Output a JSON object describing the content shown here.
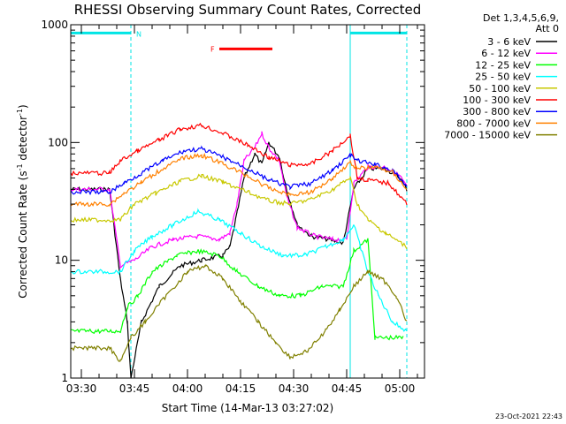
{
  "chart_data": {
    "type": "line",
    "title": "RHESSI Observing Summary Count Rates, Corrected",
    "xlabel": "Start Time (14-Mar-13 03:27:02)",
    "ylabel_main": "Corrected Count Rate (s",
    "ylabel_sup1": "-1",
    "ylabel_mid": " detector",
    "ylabel_sup2": "-1",
    "ylabel_end": ")",
    "yscale": "log",
    "ylim": [
      1,
      1000
    ],
    "y_ticks": [
      {
        "value": 1,
        "label": "1"
      },
      {
        "value": 10,
        "label": "10"
      },
      {
        "value": 100,
        "label": "100"
      },
      {
        "value": 1000,
        "label": "1000"
      }
    ],
    "xlim": [
      "03:27",
      "05:07"
    ],
    "x_ticks": [
      {
        "value": "03:30",
        "label": "03:30"
      },
      {
        "value": "03:45",
        "label": "03:45"
      },
      {
        "value": "04:00",
        "label": "04:00"
      },
      {
        "value": "04:15",
        "label": "04:15"
      },
      {
        "value": "04:30",
        "label": "04:30"
      },
      {
        "value": "04:45",
        "label": "04:45"
      },
      {
        "value": "05:00",
        "label": "05:00"
      }
    ],
    "legend_header": [
      "Det 1,3,4,5,6,9,",
      "Att 0"
    ],
    "legend_position": "right",
    "series": [
      {
        "name": "3 - 6 keV",
        "color": "#000000",
        "points": [
          [
            "03:27",
            40
          ],
          [
            "03:38",
            40
          ],
          [
            "03:41",
            7
          ],
          [
            "03:43",
            3
          ],
          [
            "03:44",
            1
          ],
          [
            "03:47",
            3
          ],
          [
            "03:52",
            6
          ],
          [
            "03:58",
            9
          ],
          [
            "04:04",
            10
          ],
          [
            "04:10",
            11
          ],
          [
            "04:12",
            13
          ],
          [
            "04:14",
            25
          ],
          [
            "04:16",
            50
          ],
          [
            "04:19",
            80
          ],
          [
            "04:21",
            65
          ],
          [
            "04:23",
            100
          ],
          [
            "04:26",
            75
          ],
          [
            "04:28",
            40
          ],
          [
            "04:31",
            20
          ],
          [
            "04:35",
            16
          ],
          [
            "04:40",
            15
          ],
          [
            "04:44",
            14
          ],
          [
            "04:47",
            40
          ],
          [
            "04:51",
            60
          ],
          [
            "04:56",
            60
          ],
          [
            "05:00",
            50
          ],
          [
            "05:02",
            40
          ]
        ]
      },
      {
        "name": "6 - 12 keV",
        "color": "#ff00ff",
        "points": [
          [
            "03:27",
            40
          ],
          [
            "03:38",
            40
          ],
          [
            "03:41",
            9
          ],
          [
            "03:45",
            10
          ],
          [
            "03:50",
            13
          ],
          [
            "03:56",
            15
          ],
          [
            "04:03",
            16
          ],
          [
            "04:09",
            15
          ],
          [
            "04:12",
            17
          ],
          [
            "04:14",
            30
          ],
          [
            "04:16",
            70
          ],
          [
            "04:19",
            90
          ],
          [
            "04:21",
            120
          ],
          [
            "04:23",
            90
          ],
          [
            "04:26",
            70
          ],
          [
            "04:28",
            35
          ],
          [
            "04:31",
            19
          ],
          [
            "04:36",
            16
          ],
          [
            "04:41",
            15
          ],
          [
            "04:45",
            15
          ],
          [
            "04:47",
            45
          ],
          [
            "04:51",
            62
          ],
          [
            "04:56",
            62
          ],
          [
            "05:00",
            52
          ],
          [
            "05:02",
            42
          ]
        ]
      },
      {
        "name": "12 - 25 keV",
        "color": "#00ff00",
        "points": [
          [
            "03:27",
            2.5
          ],
          [
            "03:34",
            2.5
          ],
          [
            "03:41",
            2.5
          ],
          [
            "03:43",
            4
          ],
          [
            "03:46",
            5
          ],
          [
            "03:50",
            8
          ],
          [
            "03:57",
            11
          ],
          [
            "04:03",
            12
          ],
          [
            "04:09",
            11
          ],
          [
            "04:14",
            8
          ],
          [
            "04:20",
            6
          ],
          [
            "04:26",
            5
          ],
          [
            "04:32",
            5
          ],
          [
            "04:38",
            6
          ],
          [
            "04:44",
            6
          ],
          [
            "04:47",
            12
          ],
          [
            "04:51",
            15
          ],
          [
            "04:53",
            2.2
          ],
          [
            "05:01",
            2.2
          ]
        ]
      },
      {
        "name": "25 - 50 keV",
        "color": "#00ffff",
        "points": [
          [
            "03:27",
            8
          ],
          [
            "03:41",
            8
          ],
          [
            "03:45",
            12
          ],
          [
            "03:50",
            16
          ],
          [
            "03:56",
            20
          ],
          [
            "04:03",
            26
          ],
          [
            "04:09",
            22
          ],
          [
            "04:15",
            17
          ],
          [
            "04:21",
            13
          ],
          [
            "04:27",
            11
          ],
          [
            "04:33",
            11
          ],
          [
            "04:39",
            13
          ],
          [
            "04:44",
            15
          ],
          [
            "04:47",
            20
          ],
          [
            "04:51",
            8
          ],
          [
            "04:54",
            5
          ],
          [
            "04:58",
            3
          ],
          [
            "05:02",
            2.5
          ]
        ]
      },
      {
        "name": "50 - 100 keV",
        "color": "#c8c800",
        "points": [
          [
            "03:27",
            22
          ],
          [
            "03:41",
            22
          ],
          [
            "03:45",
            30
          ],
          [
            "03:51",
            37
          ],
          [
            "03:58",
            47
          ],
          [
            "04:04",
            52
          ],
          [
            "04:10",
            46
          ],
          [
            "04:17",
            38
          ],
          [
            "04:23",
            32
          ],
          [
            "04:29",
            30
          ],
          [
            "04:35",
            33
          ],
          [
            "04:41",
            40
          ],
          [
            "04:46",
            50
          ],
          [
            "04:48",
            30
          ],
          [
            "04:51",
            22
          ],
          [
            "04:56",
            17
          ],
          [
            "05:02",
            13
          ]
        ]
      },
      {
        "name": "100 - 300 keV",
        "color": "#ff0000",
        "points": [
          [
            "03:27",
            55
          ],
          [
            "03:38",
            55
          ],
          [
            "03:41",
            70
          ],
          [
            "03:46",
            85
          ],
          [
            "03:52",
            105
          ],
          [
            "03:58",
            130
          ],
          [
            "04:04",
            140
          ],
          [
            "04:10",
            120
          ],
          [
            "04:17",
            95
          ],
          [
            "04:23",
            75
          ],
          [
            "04:29",
            64
          ],
          [
            "04:35",
            66
          ],
          [
            "04:41",
            85
          ],
          [
            "04:46",
            115
          ],
          [
            "04:48",
            50
          ],
          [
            "04:51",
            48
          ],
          [
            "04:57",
            45
          ],
          [
            "05:02",
            30
          ]
        ]
      },
      {
        "name": "300 - 800 keV",
        "color": "#0000ff",
        "points": [
          [
            "03:27",
            38
          ],
          [
            "03:38",
            38
          ],
          [
            "03:42",
            45
          ],
          [
            "03:47",
            55
          ],
          [
            "03:53",
            70
          ],
          [
            "03:59",
            85
          ],
          [
            "04:04",
            88
          ],
          [
            "04:10",
            75
          ],
          [
            "04:17",
            60
          ],
          [
            "04:23",
            48
          ],
          [
            "04:29",
            42
          ],
          [
            "04:35",
            45
          ],
          [
            "04:41",
            58
          ],
          [
            "04:46",
            78
          ],
          [
            "04:48",
            70
          ],
          [
            "04:53",
            65
          ],
          [
            "04:58",
            58
          ],
          [
            "05:02",
            42
          ]
        ]
      },
      {
        "name": "800 - 7000 keV",
        "color": "#ff8000",
        "points": [
          [
            "03:27",
            30
          ],
          [
            "03:38",
            30
          ],
          [
            "03:42",
            37
          ],
          [
            "03:47",
            46
          ],
          [
            "03:53",
            60
          ],
          [
            "03:59",
            74
          ],
          [
            "04:04",
            78
          ],
          [
            "04:10",
            66
          ],
          [
            "04:17",
            52
          ],
          [
            "04:23",
            41
          ],
          [
            "04:29",
            36
          ],
          [
            "04:35",
            38
          ],
          [
            "04:41",
            50
          ],
          [
            "04:46",
            68
          ],
          [
            "04:48",
            60
          ],
          [
            "04:53",
            62
          ],
          [
            "04:58",
            56
          ],
          [
            "05:02",
            40
          ]
        ]
      },
      {
        "name": "7000 - 15000 keV",
        "color": "#808000",
        "points": [
          [
            "03:27",
            1.8
          ],
          [
            "03:38",
            1.8
          ],
          [
            "03:41",
            1.4
          ],
          [
            "03:44",
            2.2
          ],
          [
            "03:48",
            3
          ],
          [
            "03:54",
            5
          ],
          [
            "04:00",
            8
          ],
          [
            "04:05",
            9
          ],
          [
            "04:10",
            7
          ],
          [
            "04:15",
            4.5
          ],
          [
            "04:20",
            3
          ],
          [
            "04:25",
            2
          ],
          [
            "04:29",
            1.5
          ],
          [
            "04:34",
            1.7
          ],
          [
            "04:39",
            2.5
          ],
          [
            "04:43",
            3.8
          ],
          [
            "04:47",
            6
          ],
          [
            "04:51",
            8
          ],
          [
            "04:55",
            7
          ],
          [
            "04:59",
            5
          ],
          [
            "05:02",
            3
          ]
        ]
      }
    ],
    "annotations": {
      "night_flag_label": "N",
      "night_intervals": [
        [
          "03:27",
          "03:44"
        ],
        [
          "04:46",
          "05:02"
        ]
      ],
      "night_level": 850,
      "flare_flag_label": "F",
      "flare_interval": [
        "04:09",
        "04:24"
      ],
      "flare_level": 850,
      "saa_boundaries": [
        "03:27",
        "04:46"
      ],
      "dashed_boundaries": [
        "03:44",
        "05:02"
      ]
    },
    "grid": false
  },
  "footer": {
    "timestamp": "23-Oct-2021 22:43"
  },
  "colors": {
    "axis": "#000000",
    "night_bar": "#00e5e5",
    "flare_bar": "#ff0000",
    "background": "#ffffff"
  }
}
